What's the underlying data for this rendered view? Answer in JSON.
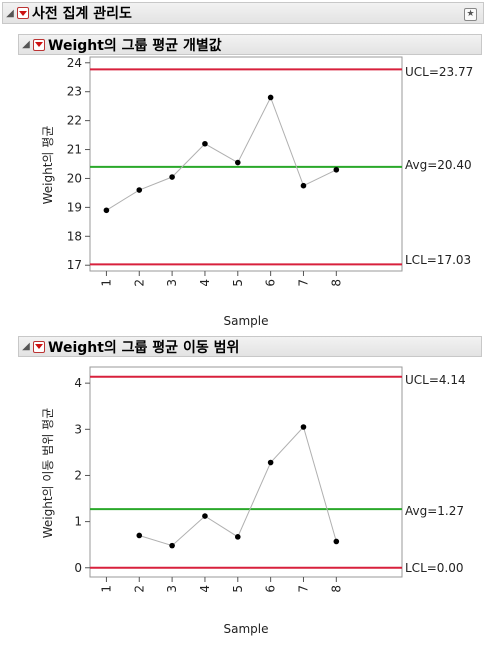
{
  "report": {
    "title": "사전 집계 관리도",
    "settings_icon": "star-settings-icon"
  },
  "charts": [
    {
      "title": "Weight의 그룹 평균 개별값",
      "ylabel": "Weight의 평균",
      "xlabel": "Sample",
      "yticks": [
        "24",
        "23",
        "22",
        "21",
        "20",
        "19",
        "18",
        "17"
      ],
      "xticks": [
        "1",
        "2",
        "3",
        "4",
        "5",
        "6",
        "7",
        "8"
      ],
      "ucl_label": "UCL=23.77",
      "avg_label": "Avg=20.40",
      "lcl_label": "LCL=17.03"
    },
    {
      "title": "Weight의 그룹 평균 이동 범위",
      "ylabel": "Weight의 이동 범위 평균",
      "xlabel": "Sample",
      "yticks": [
        "4",
        "3",
        "2",
        "1",
        "0"
      ],
      "xticks": [
        "1",
        "2",
        "3",
        "4",
        "5",
        "6",
        "7",
        "8"
      ],
      "ucl_label": "UCL=4.14",
      "avg_label": "Avg=1.27",
      "lcl_label": "LCL=0.00"
    }
  ],
  "chart_data": [
    {
      "type": "line",
      "title": "Weight의 그룹 평균 개별값",
      "xlabel": "Sample",
      "ylabel": "Weight의 평균",
      "x": [
        1,
        2,
        3,
        4,
        5,
        6,
        7,
        8
      ],
      "y": [
        18.9,
        19.6,
        20.05,
        21.2,
        20.55,
        22.8,
        19.75,
        20.3
      ],
      "ylim": [
        16.8,
        24.2
      ],
      "xlim": [
        0.5,
        10
      ],
      "limits": {
        "ucl": 23.77,
        "avg": 20.4,
        "lcl": 17.03
      },
      "colors": {
        "limit": "#d8203c",
        "center": "#2aa82a",
        "line": "#b0b0b0",
        "point": "#000000"
      },
      "grid": false
    },
    {
      "type": "line",
      "title": "Weight의 그룹 평균 이동 범위",
      "xlabel": "Sample",
      "ylabel": "Weight의 이동 범위 평균",
      "x": [
        2,
        3,
        4,
        5,
        6,
        7,
        8
      ],
      "y": [
        0.7,
        0.48,
        1.12,
        0.67,
        2.28,
        3.05,
        0.57
      ],
      "ylim": [
        -0.2,
        4.35
      ],
      "xlim": [
        0.5,
        10
      ],
      "limits": {
        "ucl": 4.14,
        "avg": 1.27,
        "lcl": 0.0
      },
      "colors": {
        "limit": "#d8203c",
        "center": "#2aa82a",
        "line": "#b0b0b0",
        "point": "#000000"
      },
      "grid": false
    }
  ]
}
